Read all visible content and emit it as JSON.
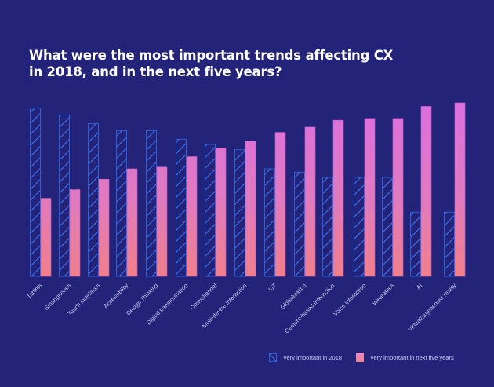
{
  "title": "What were the most important trends affecting CX in 2018, and in the next five years?",
  "colors": {
    "background": "#23237a",
    "series_2018_stroke": "#2f5fd6",
    "series_2018_hatch": "#3a6de8",
    "series_next_top": "#dc6fe0",
    "series_next_bottom": "#f07f8a",
    "label": "#c9c9ee"
  },
  "chart_data": {
    "type": "bar",
    "title": "What were the most important trends affecting CX in 2018, and in the next five years?",
    "xlabel": "",
    "ylabel": "",
    "ylim": [
      0,
      100
    ],
    "grid": false,
    "legend_position": "bottom-right",
    "categories": [
      "Tablets",
      "Smartphones",
      "Touch interfaces",
      "Accessibility",
      "Design Thinking",
      "Digital transformation",
      "Omnichannel",
      "Multi-device interaction",
      "IoT",
      "Globalization",
      "Gesture-based interaction",
      "Voice interaction",
      "Wearables",
      "AI",
      "Virtual/augmented reality"
    ],
    "series": [
      {
        "name": "Very important in 2018",
        "values": [
          97,
          93,
          88,
          84,
          84,
          79,
          76,
          73,
          62,
          60,
          57,
          57,
          57,
          37,
          37
        ]
      },
      {
        "name": "Very important in next five years",
        "values": [
          45,
          50,
          56,
          62,
          63,
          69,
          74,
          78,
          83,
          86,
          90,
          91,
          91,
          98,
          100
        ]
      }
    ]
  },
  "legend": {
    "items": [
      "Very important in 2018",
      "Very important in next five years"
    ]
  }
}
